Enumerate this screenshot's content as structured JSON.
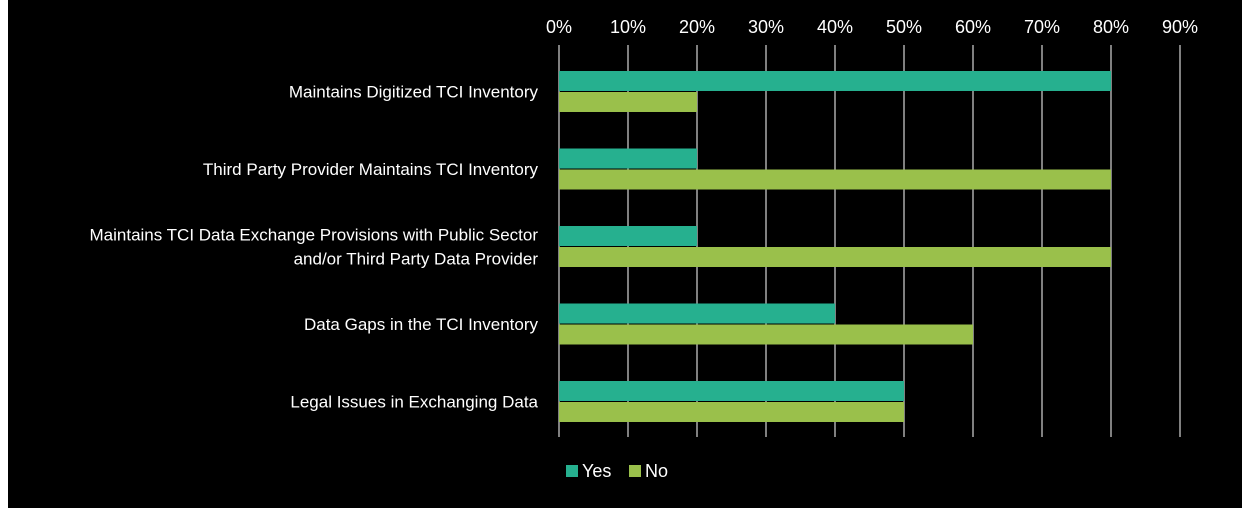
{
  "chart_data": {
    "type": "bar",
    "orientation": "horizontal",
    "categories": [
      "Maintains Digitized TCI Inventory",
      "Third Party Provider Maintains TCI Inventory",
      "Maintains TCI Data Exchange Provisions with Public Sector and/or Third Party Data Provider",
      "Data Gaps in the TCI Inventory",
      "Legal Issues in Exchanging Data"
    ],
    "category_lines": [
      [
        "Maintains Digitized TCI Inventory"
      ],
      [
        "Third Party Provider Maintains TCI Inventory"
      ],
      [
        "Maintains TCI Data Exchange Provisions with Public Sector",
        "and/or Third Party Data Provider"
      ],
      [
        "Data Gaps in the TCI Inventory"
      ],
      [
        "Legal Issues in Exchanging Data"
      ]
    ],
    "series": [
      {
        "name": "Yes",
        "color": "#26b08f",
        "values": [
          80,
          20,
          20,
          40,
          50
        ]
      },
      {
        "name": "No",
        "color": "#9ac04b",
        "values": [
          20,
          80,
          80,
          60,
          50
        ]
      }
    ],
    "xlim": [
      0,
      90
    ],
    "x_ticks": [
      0,
      10,
      20,
      30,
      40,
      50,
      60,
      70,
      80,
      90
    ],
    "x_tick_labels": [
      "0%",
      "10%",
      "20%",
      "30%",
      "40%",
      "50%",
      "60%",
      "70%",
      "80%",
      "90%"
    ],
    "x_axis_position": "top",
    "grid": true,
    "grid_color": "#ffffff",
    "background": "#000000",
    "text_color": "#ffffff",
    "legend": "bottom-center",
    "title": "",
    "xlabel": "",
    "ylabel": ""
  }
}
